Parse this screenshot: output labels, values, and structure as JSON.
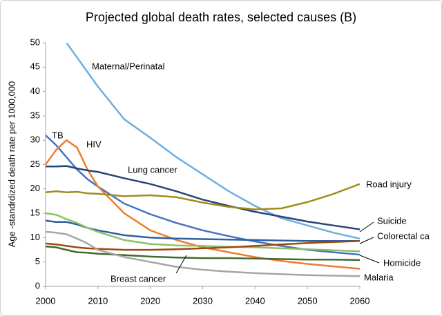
{
  "chart_data": {
    "type": "line",
    "title": "Projected global death rates, selected causes (B)",
    "y_label": "Age -standrdized death rate per 1000,000",
    "x": [
      2000,
      2002,
      2004,
      2006,
      2008,
      2010,
      2015,
      2020,
      2025,
      2030,
      2035,
      2040,
      2045,
      2050,
      2055,
      2060
    ],
    "xlim": [
      2000,
      2060
    ],
    "xticks": [
      2000,
      2010,
      2020,
      2030,
      2040,
      2050,
      2060
    ],
    "ylim": [
      0,
      50
    ],
    "yticks": [
      0,
      5,
      10,
      15,
      20,
      25,
      30,
      35,
      40,
      45,
      50
    ],
    "grid": false,
    "series": [
      {
        "name": "Maternal/Perinatal",
        "color": "#6aafe0",
        "values": [
          null,
          null,
          50,
          47,
          44,
          41,
          34.3,
          30.5,
          26.5,
          23,
          19.5,
          16.5,
          14,
          12.5,
          11,
          9.8
        ]
      },
      {
        "name": "TB",
        "color": "#4472c4",
        "values": [
          31,
          29,
          26.5,
          24,
          22,
          20.5,
          17,
          14.8,
          13,
          11.5,
          10.3,
          9.2,
          8.3,
          7.5,
          7,
          6.5
        ]
      },
      {
        "name": "HIV",
        "color": "#ed7d31",
        "values": [
          25,
          28,
          30,
          28.5,
          24,
          20.5,
          15,
          11.5,
          9.5,
          8,
          7,
          6,
          5.2,
          4.6,
          4.1,
          3.6
        ]
      },
      {
        "name": "Lung cancer",
        "color": "#264478",
        "values": [
          24.6,
          24.6,
          24.7,
          24.2,
          23.8,
          23.5,
          22.2,
          21,
          19.5,
          17.8,
          16.5,
          15.3,
          14.3,
          13.3,
          12.5,
          11.7
        ]
      },
      {
        "name": "Road injury",
        "color": "#a28a1c",
        "values": [
          19.3,
          19.5,
          19.3,
          19.4,
          19.1,
          19,
          18.5,
          18.7,
          18.3,
          17.2,
          16.3,
          15.8,
          16,
          17.3,
          19,
          21
        ]
      },
      {
        "name": "Suicide",
        "color": "#2e5f9e",
        "values": [
          13.5,
          13.2,
          13.2,
          12.7,
          12,
          11.5,
          10.5,
          10,
          9.8,
          9.7,
          9.6,
          9.5,
          9.4,
          9.3,
          9.3,
          9.3
        ]
      },
      {
        "name": "Colorectal ca",
        "color": "#8cc063",
        "values": [
          15,
          14.7,
          13.8,
          13,
          12,
          11.2,
          9.5,
          8.7,
          8.4,
          8.3,
          8.1,
          8,
          7.8,
          7.6,
          7.4,
          7.2
        ]
      },
      {
        "name": "Homicide",
        "color": "#9e480e",
        "values": [
          8.8,
          8.6,
          8.3,
          8,
          7.8,
          7.7,
          7.5,
          7.5,
          7.6,
          7.8,
          8,
          8.3,
          8.6,
          8.9,
          9.1,
          9.3
        ]
      },
      {
        "name": "Breast cancer",
        "color": "#43682b",
        "values": [
          8.2,
          8,
          7.5,
          7,
          6.9,
          6.7,
          6.4,
          6.1,
          5.9,
          5.8,
          5.8,
          5.7,
          5.6,
          5.5,
          5.5,
          5.4
        ]
      },
      {
        "name": "Malaria",
        "color": "#a5a5a5",
        "values": [
          11.2,
          11,
          10.7,
          9.8,
          8.8,
          7.5,
          6,
          5,
          4,
          3.4,
          3,
          2.7,
          2.5,
          2.3,
          2.2,
          2.1
        ]
      }
    ]
  }
}
